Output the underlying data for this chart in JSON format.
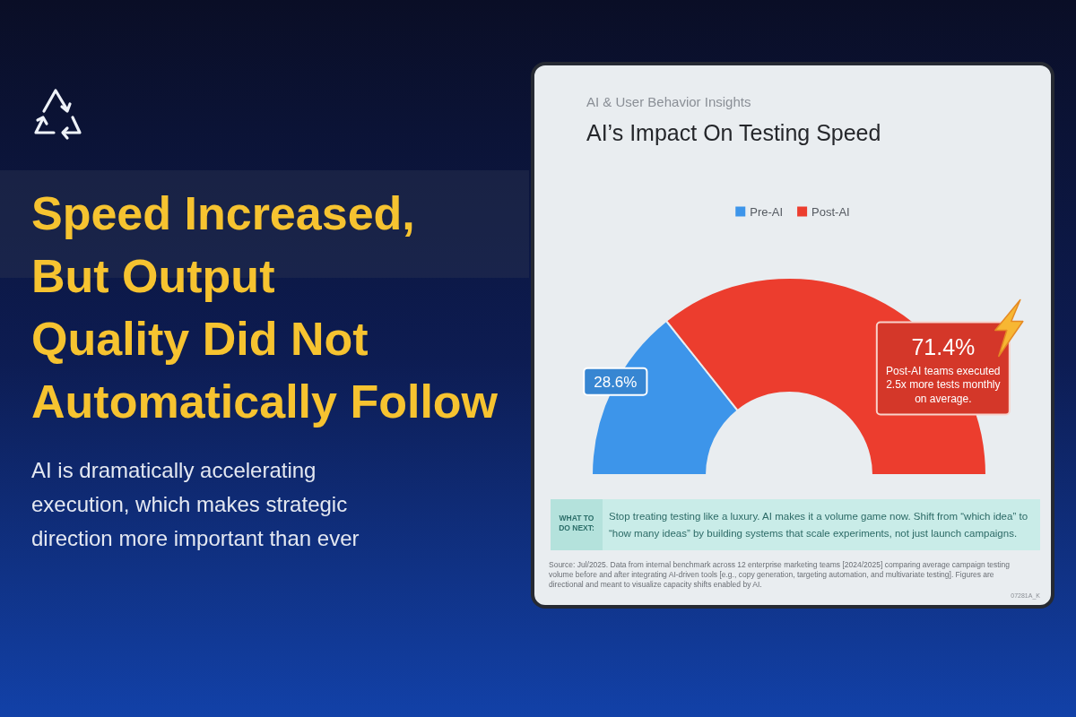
{
  "chart_data": {
    "type": "donut",
    "title": "AI’s Impact On Testing Speed",
    "subtitle": "AI & User Behavior Insights",
    "categories": [
      "Pre-AI",
      "Post-AI"
    ],
    "values": [
      28.6,
      71.4
    ],
    "value_labels": [
      "28.6%",
      "71.4%"
    ],
    "colors": [
      "#3d95ea",
      "#ec3d2e"
    ],
    "legend": "top",
    "annotations": [
      "Speed Increased,\nBut Output\nQuality Did Not\nAutomatically Follow",
      "AI is dramatically accelerating\nexecution, which makes strategic\ndirection more important than ever",
      "Post-AI teams executed 2.5x more tests monthly on average.",
      "WHAT TO DO NEXT:",
      "Stop treating testing like a luxury. AI makes it a volume game now. Shift from “which idea” to “how many ideas” by building systems that scale experiments, not just launch campaigns.",
      "Source: Jul/2025. Data from internal benchmark across 12 enterprise marketing teams [2024/2025] comparing average campaign testing volume before and after integrating AI-driven tools [e.g., copy generation, targeting automation, and multivariate testing]. Figures are directional and meant to visualize capacity shifts enabled by AI.",
      "07281A_K"
    ]
  }
}
